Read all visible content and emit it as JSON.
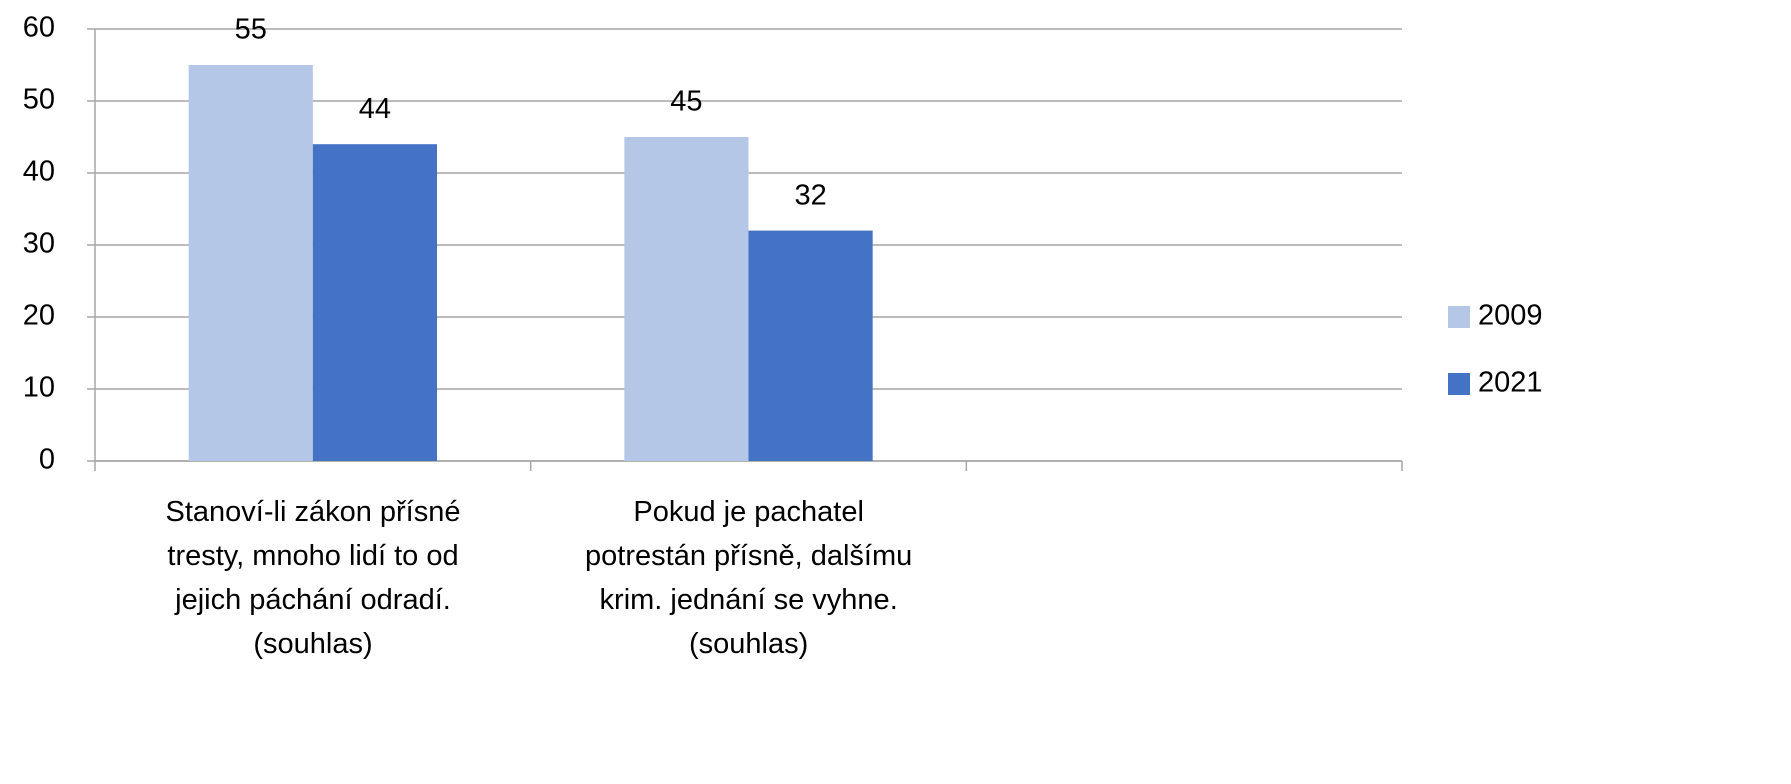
{
  "chart_data": {
    "type": "bar",
    "categories": [
      "Stanoví-li zákon přísné\ntresty, mnoho lidí to od\njejich páchání odradí.\n(souhlas)",
      "Pokud je pachatel\npotrestán přísně, dalšímu\nkrim. jednání se vyhne.\n(souhlas)",
      null
    ],
    "series": [
      {
        "name": "2009",
        "color": "#b4c7e7",
        "values": [
          55,
          45,
          null
        ]
      },
      {
        "name": "2021",
        "color": "#4472c4",
        "values": [
          44,
          32,
          null
        ]
      }
    ],
    "ylim": [
      0,
      60
    ],
    "yticks": [
      0,
      10,
      20,
      30,
      40,
      50,
      60
    ],
    "grid": true,
    "legend": "right"
  }
}
